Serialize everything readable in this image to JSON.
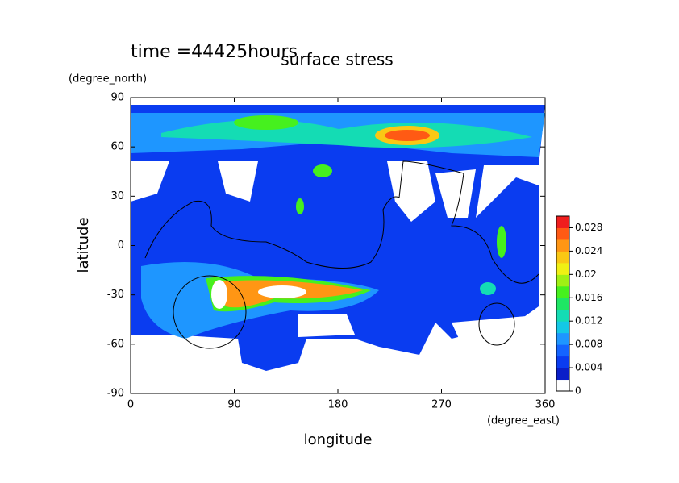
{
  "chart_data": {
    "type": "contour",
    "annotation": "time =44425hours",
    "title": "surface stress",
    "xlabel": "longitude",
    "xunit": "(degree_east)",
    "ylabel": "latitude",
    "yunit": "(degree_north)",
    "xlim": [
      0,
      360
    ],
    "xticks": [
      0,
      90,
      180,
      270,
      360
    ],
    "ylim": [
      -90,
      90
    ],
    "yticks": [
      -90,
      -60,
      -30,
      0,
      30,
      60,
      90
    ],
    "clim": [
      0,
      0.03
    ],
    "cticks": [
      0,
      0.004,
      0.008,
      0.012,
      0.016,
      0.02,
      0.024,
      0.028
    ],
    "colors": [
      "#ffffff",
      "#0a1ec8",
      "#0a3cf0",
      "#1464ff",
      "#1e96ff",
      "#14c8e6",
      "#14dcb4",
      "#1ee664",
      "#46f01e",
      "#a0f014",
      "#f0f014",
      "#fac814",
      "#ff9614",
      "#ff5a14",
      "#f01e1e"
    ]
  }
}
